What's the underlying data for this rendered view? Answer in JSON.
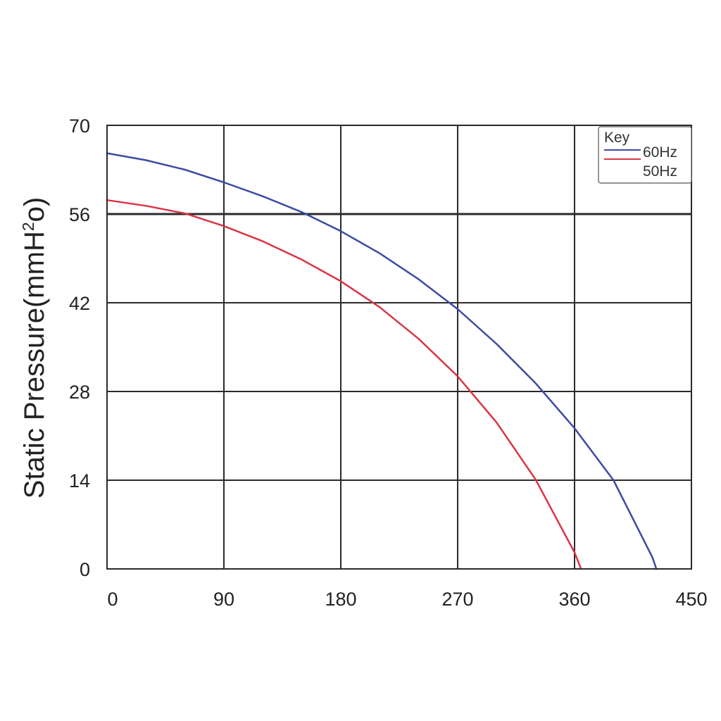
{
  "chart_data": {
    "type": "line",
    "title": "",
    "xlabel": "",
    "ylabel": "Static Pressure(mmH",
    "ylabel_sup": "2",
    "ylabel_tail": "o)",
    "xlim": [
      0,
      450
    ],
    "ylim": [
      0,
      70
    ],
    "x_ticks": [
      0,
      90,
      180,
      270,
      360,
      450
    ],
    "y_ticks": [
      0,
      14,
      28,
      42,
      56,
      70
    ],
    "grid": true,
    "legend": {
      "title": "Key",
      "placement": "top-right"
    },
    "series": [
      {
        "name": "60Hz",
        "color": "#3d4aa3",
        "x": [
          0,
          30,
          60,
          90,
          120,
          150,
          180,
          210,
          240,
          270,
          300,
          330,
          360,
          390,
          420,
          423
        ],
        "y": [
          65.6,
          64.5,
          63.0,
          61.0,
          58.8,
          56.3,
          53.3,
          49.8,
          45.7,
          41.0,
          35.5,
          29.3,
          22.2,
          14.0,
          1.8,
          0
        ]
      },
      {
        "name": "50Hz",
        "color": "#d93545",
        "x": [
          0,
          30,
          60,
          90,
          120,
          150,
          180,
          210,
          240,
          270,
          300,
          330,
          360,
          365
        ],
        "y": [
          58.2,
          57.3,
          56.1,
          54.1,
          51.7,
          48.8,
          45.4,
          41.3,
          36.3,
          30.4,
          23.1,
          14.1,
          2.6,
          0
        ]
      }
    ]
  }
}
